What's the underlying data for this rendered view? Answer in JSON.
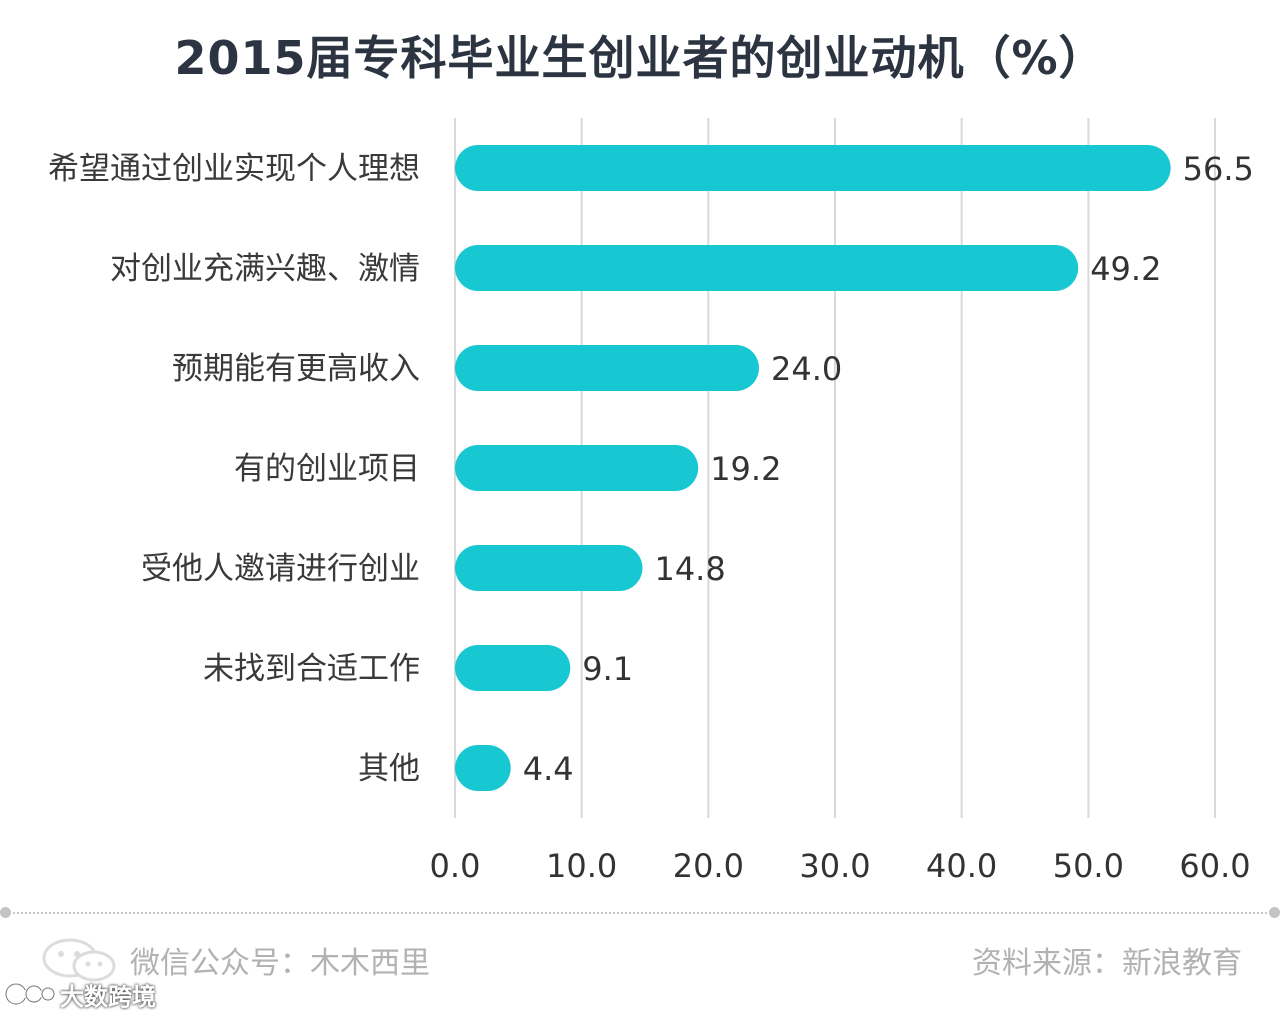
{
  "chart_data": {
    "type": "bar",
    "orientation": "horizontal",
    "title": "2015届专科毕业生创业者的创业动机（%）",
    "categories": [
      "希望通过创业实现个人理想",
      "对创业充满兴趣、激情",
      "预期能有更高收入",
      "有的创业项目",
      "受他人邀请进行创业",
      "未找到合适工作",
      "其他"
    ],
    "values": [
      56.5,
      49.2,
      24.0,
      19.2,
      14.8,
      9.1,
      4.4
    ],
    "value_labels": [
      "56.5",
      "49.2",
      "24.0",
      "19.2",
      "14.8",
      "9.1",
      "4.4"
    ],
    "xlim": [
      0,
      60
    ],
    "xticks": [
      "0.0",
      "10.0",
      "20.0",
      "30.0",
      "40.0",
      "50.0",
      "60.0"
    ],
    "xtick_values": [
      0,
      10,
      20,
      30,
      40,
      50,
      60
    ],
    "xlabel": "",
    "ylabel": "",
    "grid": true,
    "bar_color": "#17c8d2",
    "grid_color": "#d9d9d9"
  },
  "footer": {
    "left_text": "微信公众号：木木西里",
    "right_text": "资料来源：新浪教育"
  },
  "watermark": {
    "text": "大数跨境",
    "icon": "wechat-icon"
  }
}
